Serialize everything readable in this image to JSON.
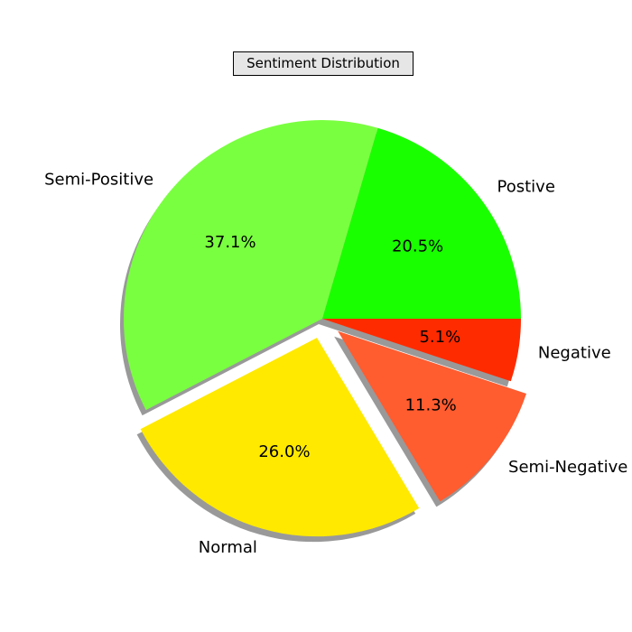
{
  "chart_data": {
    "type": "pie",
    "title": "Sentiment Distribution",
    "slices": [
      {
        "label": "Postive",
        "value": 20.5,
        "pct_label": "20.5%",
        "color": "#1aff00",
        "explode": 0
      },
      {
        "label": "Semi-Positive",
        "value": 37.1,
        "pct_label": "37.1%",
        "color": "#7aff40",
        "explode": 0
      },
      {
        "label": "Normal",
        "value": 26.0,
        "pct_label": "26.0%",
        "color": "#ffe900",
        "explode": 1
      },
      {
        "label": "Semi-Negative",
        "value": 11.3,
        "pct_label": "11.3%",
        "color": "#ff5c30",
        "explode": 1
      },
      {
        "label": "Negative",
        "value": 5.1,
        "pct_label": "5.1%",
        "color": "#ff2b00",
        "explode": 0
      }
    ],
    "start_angle": 0,
    "direction": "counterclockwise",
    "shadow": true,
    "legend": false
  }
}
